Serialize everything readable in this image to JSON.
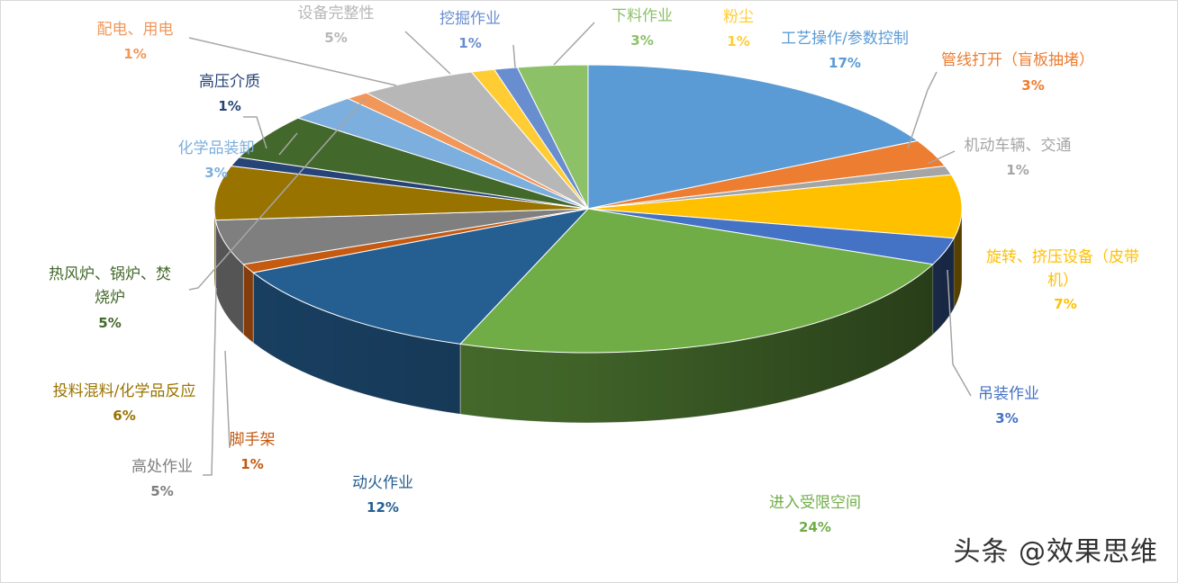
{
  "watermark": "头条 @效果思维",
  "chart_data": {
    "type": "pie",
    "title": "",
    "slices": [
      {
        "name": "工艺操作/参数控制",
        "label": "17%",
        "value": 17,
        "color": "#5b9bd5"
      },
      {
        "name": "管线打开（盲板抽堵）",
        "label": "3%",
        "value": 3,
        "color": "#ed7d31"
      },
      {
        "name": "机动车辆、交通",
        "label": "1%",
        "value": 1,
        "color": "#a5a5a5"
      },
      {
        "name": "旋转、挤压设备（皮带机）",
        "label": "7%",
        "value": 7,
        "color": "#ffc000"
      },
      {
        "name": "吊装作业",
        "label": "3%",
        "value": 3,
        "color": "#4472c4"
      },
      {
        "name": "进入受限空间",
        "label": "24%",
        "value": 24,
        "color": "#70ad47"
      },
      {
        "name": "动火作业",
        "label": "12%",
        "value": 12,
        "color": "#255e91"
      },
      {
        "name": "脚手架",
        "label": "1%",
        "value": 1,
        "color": "#c55a11"
      },
      {
        "name": "高处作业",
        "label": "5%",
        "value": 5,
        "color": "#7f7f7f"
      },
      {
        "name": "投料混料/化学品反应",
        "label": "6%",
        "value": 6,
        "color": "#997300"
      },
      {
        "name": "高压介质",
        "label": "1%",
        "value": 1,
        "color": "#264478"
      },
      {
        "name": "热风炉、锅炉、焚烧炉",
        "label": "5%",
        "value": 5,
        "color": "#43682b"
      },
      {
        "name": "化学品装卸",
        "label": "3%",
        "value": 3,
        "color": "#7cafdd"
      },
      {
        "name": "配电、用电",
        "label": "1%",
        "value": 1,
        "color": "#f1975a"
      },
      {
        "name": "设备完整性",
        "label": "5%",
        "value": 5,
        "color": "#b7b7b7"
      },
      {
        "name": "粉尘",
        "label": "1%",
        "value": 1,
        "color": "#ffcd33"
      },
      {
        "name": "挖掘作业",
        "label": "1%",
        "value": 1,
        "color": "#698ed0"
      },
      {
        "name": "下料作业",
        "label": "3%",
        "value": 3,
        "color": "#8cc168"
      }
    ]
  }
}
